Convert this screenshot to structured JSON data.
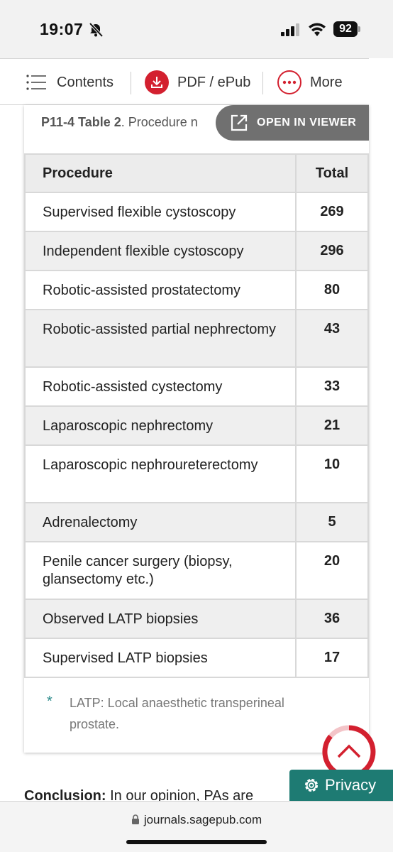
{
  "status_bar": {
    "time": "19:07",
    "battery": "92"
  },
  "toolbar": {
    "contents_label": "Contents",
    "pdf_label": "PDF / ePub",
    "more_label": "More"
  },
  "table_caption": {
    "id": "P11-4 Table 2",
    "text": ". Procedure n"
  },
  "open_in_viewer_label": "OPEN IN VIEWER",
  "table": {
    "headers": [
      "Procedure",
      "Total"
    ],
    "rows": [
      {
        "procedure": "Supervised flexible cystoscopy",
        "total": "269"
      },
      {
        "procedure": "Independent flexible cystoscopy",
        "total": "296"
      },
      {
        "procedure": "Robotic-assisted prostatectomy",
        "total": "80"
      },
      {
        "procedure": "Robotic-assisted partial nephrectomy",
        "total": "43"
      },
      {
        "procedure": "Robotic-assisted cystectomy",
        "total": "33"
      },
      {
        "procedure": "Laparoscopic nephrectomy",
        "total": "21"
      },
      {
        "procedure": "Laparoscopic nephroureterectomy",
        "total": "10"
      },
      {
        "procedure": "Adrenalectomy",
        "total": "5"
      },
      {
        "procedure": "Penile cancer surgery (biopsy, glansectomy etc.)",
        "total": "20"
      },
      {
        "procedure": "Observed LATP biopsies",
        "total": "36"
      },
      {
        "procedure": "Supervised LATP biopsies",
        "total": "17"
      }
    ]
  },
  "footnote": {
    "marker": "*",
    "text": "LATP: Local anaesthetic transperineal prostate."
  },
  "conclusion": {
    "bold": "Conclusion:",
    "text": " In our opinion, PAs are"
  },
  "privacy_label": "Privacy",
  "url": "journals.sagepub.com",
  "colors": {
    "brand_red": "#d3202f",
    "privacy_teal": "#1e7b73",
    "viewer_gray": "#707070"
  }
}
